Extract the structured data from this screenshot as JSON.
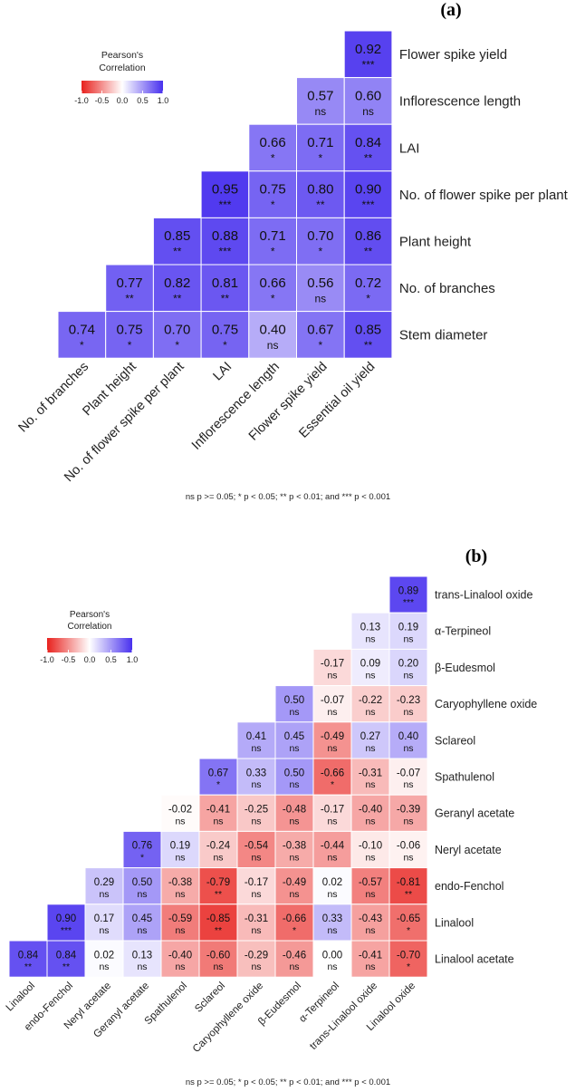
{
  "chart_data": [
    {
      "type": "heatmap",
      "panel_label": "(a)",
      "legend": {
        "title_line1": "Pearson's",
        "title_line2": "Correlation",
        "ticks": [
          "-1.0",
          "-0.5",
          "0.0",
          "0.5",
          "1.0"
        ],
        "range": [
          -1,
          1
        ],
        "colors": {
          "low": "#e8211d",
          "mid": "#ffffff",
          "high": "#4830ee"
        }
      },
      "footnote": "ns p >= 0.05; * p < 0.05; ** p < 0.01; and *** p < 0.001",
      "row_labels": [
        "Flower spike yield",
        "Inflorescence length",
        "LAI",
        "No. of flower spike per plant",
        "Plant height",
        "No. of branches",
        "Stem diameter"
      ],
      "col_labels": [
        "No. of branches",
        "Plant height",
        "No. of flower spike per plant",
        "LAI",
        "Inflorescence length",
        "Flower spike yield",
        "Essential oil yield"
      ],
      "cells": [
        {
          "r": 0,
          "c": 6,
          "v": "0.92",
          "s": "***"
        },
        {
          "r": 1,
          "c": 5,
          "v": "0.57",
          "s": "ns"
        },
        {
          "r": 1,
          "c": 6,
          "v": "0.60",
          "s": "ns"
        },
        {
          "r": 2,
          "c": 4,
          "v": "0.66",
          "s": "*"
        },
        {
          "r": 2,
          "c": 5,
          "v": "0.71",
          "s": "*"
        },
        {
          "r": 2,
          "c": 6,
          "v": "0.84",
          "s": "**"
        },
        {
          "r": 3,
          "c": 3,
          "v": "0.95",
          "s": "***"
        },
        {
          "r": 3,
          "c": 4,
          "v": "0.75",
          "s": "*"
        },
        {
          "r": 3,
          "c": 5,
          "v": "0.80",
          "s": "**"
        },
        {
          "r": 3,
          "c": 6,
          "v": "0.90",
          "s": "***"
        },
        {
          "r": 4,
          "c": 2,
          "v": "0.85",
          "s": "**"
        },
        {
          "r": 4,
          "c": 3,
          "v": "0.88",
          "s": "***"
        },
        {
          "r": 4,
          "c": 4,
          "v": "0.71",
          "s": "*"
        },
        {
          "r": 4,
          "c": 5,
          "v": "0.70",
          "s": "*"
        },
        {
          "r": 4,
          "c": 6,
          "v": "0.86",
          "s": "**"
        },
        {
          "r": 5,
          "c": 1,
          "v": "0.77",
          "s": "**"
        },
        {
          "r": 5,
          "c": 2,
          "v": "0.82",
          "s": "**"
        },
        {
          "r": 5,
          "c": 3,
          "v": "0.81",
          "s": "**"
        },
        {
          "r": 5,
          "c": 4,
          "v": "0.66",
          "s": "*"
        },
        {
          "r": 5,
          "c": 5,
          "v": "0.56",
          "s": "ns"
        },
        {
          "r": 5,
          "c": 6,
          "v": "0.72",
          "s": "*"
        },
        {
          "r": 6,
          "c": 0,
          "v": "0.74",
          "s": "*"
        },
        {
          "r": 6,
          "c": 1,
          "v": "0.75",
          "s": "*"
        },
        {
          "r": 6,
          "c": 2,
          "v": "0.70",
          "s": "*"
        },
        {
          "r": 6,
          "c": 3,
          "v": "0.75",
          "s": "*"
        },
        {
          "r": 6,
          "c": 4,
          "v": "0.40",
          "s": "ns"
        },
        {
          "r": 6,
          "c": 5,
          "v": "0.67",
          "s": "*"
        },
        {
          "r": 6,
          "c": 6,
          "v": "0.85",
          "s": "**"
        }
      ]
    },
    {
      "type": "heatmap",
      "panel_label": "(b)",
      "legend": {
        "title_line1": "Pearson's",
        "title_line2": "Correlation",
        "ticks": [
          "-1.0",
          "-0.5",
          "0.0",
          "0.5",
          "1.0"
        ],
        "range": [
          -1,
          1
        ],
        "colors": {
          "low": "#e8211d",
          "mid": "#ffffff",
          "high": "#4830ee"
        }
      },
      "footnote": "ns p >= 0.05; * p < 0.05; ** p < 0.01; and *** p < 0.001",
      "row_labels": [
        "trans-Linalool oxide",
        "α-Terpineol",
        "β-Eudesmol",
        "Caryophyllene oxide",
        "Sclareol",
        "Spathulenol",
        "Geranyl acetate",
        "Neryl acetate",
        "endo-Fenchol",
        "Linalool",
        "Linalool acetate"
      ],
      "col_labels": [
        "Linalool",
        "endo-Fenchol",
        "Neryl acetate",
        "Geranyl acetate",
        "Spathulenol",
        "Sclareol",
        "Caryophyllene oxide",
        "β-Eudesmol",
        "α-Terpineol",
        "trans-Linalool oxide",
        "Linalool oxide"
      ],
      "cells": [
        {
          "r": 0,
          "c": 10,
          "v": "0.89",
          "s": "***"
        },
        {
          "r": 1,
          "c": 9,
          "v": "0.13",
          "s": "ns"
        },
        {
          "r": 1,
          "c": 10,
          "v": "0.19",
          "s": "ns"
        },
        {
          "r": 2,
          "c": 8,
          "v": "-0.17",
          "s": "ns"
        },
        {
          "r": 2,
          "c": 9,
          "v": "0.09",
          "s": "ns"
        },
        {
          "r": 2,
          "c": 10,
          "v": "0.20",
          "s": "ns"
        },
        {
          "r": 3,
          "c": 7,
          "v": "0.50",
          "s": "ns"
        },
        {
          "r": 3,
          "c": 8,
          "v": "-0.07",
          "s": "ns"
        },
        {
          "r": 3,
          "c": 9,
          "v": "-0.22",
          "s": "ns"
        },
        {
          "r": 3,
          "c": 10,
          "v": "-0.23",
          "s": "ns"
        },
        {
          "r": 4,
          "c": 6,
          "v": "0.41",
          "s": "ns"
        },
        {
          "r": 4,
          "c": 7,
          "v": "0.45",
          "s": "ns"
        },
        {
          "r": 4,
          "c": 8,
          "v": "-0.49",
          "s": "ns"
        },
        {
          "r": 4,
          "c": 9,
          "v": "0.27",
          "s": "ns"
        },
        {
          "r": 4,
          "c": 10,
          "v": "0.40",
          "s": "ns"
        },
        {
          "r": 5,
          "c": 5,
          "v": "0.67",
          "s": "*"
        },
        {
          "r": 5,
          "c": 6,
          "v": "0.33",
          "s": "ns"
        },
        {
          "r": 5,
          "c": 7,
          "v": "0.50",
          "s": "ns"
        },
        {
          "r": 5,
          "c": 8,
          "v": "-0.66",
          "s": "*"
        },
        {
          "r": 5,
          "c": 9,
          "v": "-0.31",
          "s": "ns"
        },
        {
          "r": 5,
          "c": 10,
          "v": "-0.07",
          "s": "ns"
        },
        {
          "r": 6,
          "c": 4,
          "v": "-0.02",
          "s": "ns"
        },
        {
          "r": 6,
          "c": 5,
          "v": "-0.41",
          "s": "ns"
        },
        {
          "r": 6,
          "c": 6,
          "v": "-0.25",
          "s": "ns"
        },
        {
          "r": 6,
          "c": 7,
          "v": "-0.48",
          "s": "ns"
        },
        {
          "r": 6,
          "c": 8,
          "v": "-0.17",
          "s": "ns"
        },
        {
          "r": 6,
          "c": 9,
          "v": "-0.40",
          "s": "ns"
        },
        {
          "r": 6,
          "c": 10,
          "v": "-0.39",
          "s": "ns"
        },
        {
          "r": 7,
          "c": 3,
          "v": "0.76",
          "s": "*"
        },
        {
          "r": 7,
          "c": 4,
          "v": "0.19",
          "s": "ns"
        },
        {
          "r": 7,
          "c": 5,
          "v": "-0.24",
          "s": "ns"
        },
        {
          "r": 7,
          "c": 6,
          "v": "-0.54",
          "s": "ns"
        },
        {
          "r": 7,
          "c": 7,
          "v": "-0.38",
          "s": "ns"
        },
        {
          "r": 7,
          "c": 8,
          "v": "-0.44",
          "s": "ns"
        },
        {
          "r": 7,
          "c": 9,
          "v": "-0.10",
          "s": "ns"
        },
        {
          "r": 7,
          "c": 10,
          "v": "-0.06",
          "s": "ns"
        },
        {
          "r": 8,
          "c": 2,
          "v": "0.29",
          "s": "ns"
        },
        {
          "r": 8,
          "c": 3,
          "v": "0.50",
          "s": "ns"
        },
        {
          "r": 8,
          "c": 4,
          "v": "-0.38",
          "s": "ns"
        },
        {
          "r": 8,
          "c": 5,
          "v": "-0.79",
          "s": "**"
        },
        {
          "r": 8,
          "c": 6,
          "v": "-0.17",
          "s": "ns"
        },
        {
          "r": 8,
          "c": 7,
          "v": "-0.49",
          "s": "ns"
        },
        {
          "r": 8,
          "c": 8,
          "v": "0.02",
          "s": "ns"
        },
        {
          "r": 8,
          "c": 9,
          "v": "-0.57",
          "s": "ns"
        },
        {
          "r": 8,
          "c": 10,
          "v": "-0.81",
          "s": "**"
        },
        {
          "r": 9,
          "c": 1,
          "v": "0.90",
          "s": "***"
        },
        {
          "r": 9,
          "c": 2,
          "v": "0.17",
          "s": "ns"
        },
        {
          "r": 9,
          "c": 3,
          "v": "0.45",
          "s": "ns"
        },
        {
          "r": 9,
          "c": 4,
          "v": "-0.59",
          "s": "ns"
        },
        {
          "r": 9,
          "c": 5,
          "v": "-0.85",
          "s": "**"
        },
        {
          "r": 9,
          "c": 6,
          "v": "-0.31",
          "s": "ns"
        },
        {
          "r": 9,
          "c": 7,
          "v": "-0.66",
          "s": "*"
        },
        {
          "r": 9,
          "c": 8,
          "v": "0.33",
          "s": "ns"
        },
        {
          "r": 9,
          "c": 9,
          "v": "-0.43",
          "s": "ns"
        },
        {
          "r": 9,
          "c": 10,
          "v": "-0.65",
          "s": "*"
        },
        {
          "r": 10,
          "c": 0,
          "v": "0.84",
          "s": "**"
        },
        {
          "r": 10,
          "c": 1,
          "v": "0.84",
          "s": "**"
        },
        {
          "r": 10,
          "c": 2,
          "v": "0.02",
          "s": "ns"
        },
        {
          "r": 10,
          "c": 3,
          "v": "0.13",
          "s": "ns"
        },
        {
          "r": 10,
          "c": 4,
          "v": "-0.40",
          "s": "ns"
        },
        {
          "r": 10,
          "c": 5,
          "v": "-0.60",
          "s": "ns"
        },
        {
          "r": 10,
          "c": 6,
          "v": "-0.29",
          "s": "ns"
        },
        {
          "r": 10,
          "c": 7,
          "v": "-0.46",
          "s": "ns"
        },
        {
          "r": 10,
          "c": 8,
          "v": "0.00",
          "s": "ns"
        },
        {
          "r": 10,
          "c": 9,
          "v": "-0.41",
          "s": "ns"
        },
        {
          "r": 10,
          "c": 10,
          "v": "-0.70",
          "s": "*"
        }
      ]
    }
  ]
}
